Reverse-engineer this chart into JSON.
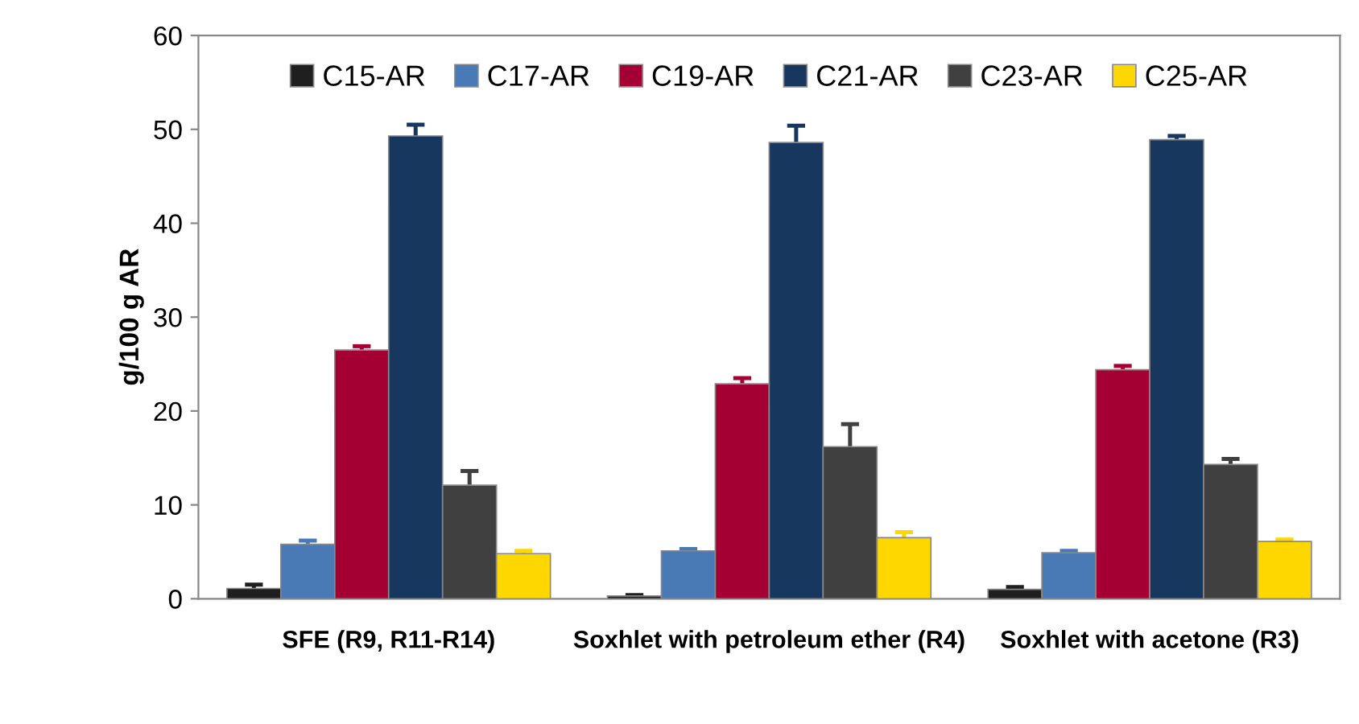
{
  "chart_data": {
    "type": "bar",
    "ylabel": "g/100 g AR",
    "categories": [
      "SFE (R9, R11-R14)",
      "Soxhlet with petroleum ether (R4)",
      "Soxhlet with acetone (R3)"
    ],
    "series": [
      {
        "name": "C15-AR",
        "color": "#1f1f1f",
        "values": [
          1.1,
          0.3,
          1.0
        ],
        "errors": [
          0.4,
          0.1,
          0.25
        ]
      },
      {
        "name": "C17-AR",
        "color": "#4a7ab5",
        "values": [
          5.8,
          5.1,
          4.9
        ],
        "errors": [
          0.4,
          0.2,
          0.2
        ]
      },
      {
        "name": "C19-AR",
        "color": "#a50034",
        "values": [
          26.5,
          22.9,
          24.4
        ],
        "errors": [
          0.4,
          0.6,
          0.4
        ]
      },
      {
        "name": "C21-AR",
        "color": "#17375e",
        "values": [
          49.3,
          48.6,
          48.9
        ],
        "errors": [
          1.2,
          1.8,
          0.4
        ]
      },
      {
        "name": "C23-AR",
        "color": "#404040",
        "values": [
          12.1,
          16.2,
          14.3
        ],
        "errors": [
          1.5,
          2.4,
          0.6
        ]
      },
      {
        "name": "C25-AR",
        "color": "#ffd700",
        "values": [
          4.8,
          6.5,
          6.1
        ],
        "errors": [
          0.3,
          0.6,
          0.2
        ]
      }
    ],
    "ylim": [
      0,
      60
    ],
    "yticks": [
      0,
      10,
      20,
      30,
      40,
      50,
      60
    ],
    "grid": false,
    "legend": "top"
  }
}
